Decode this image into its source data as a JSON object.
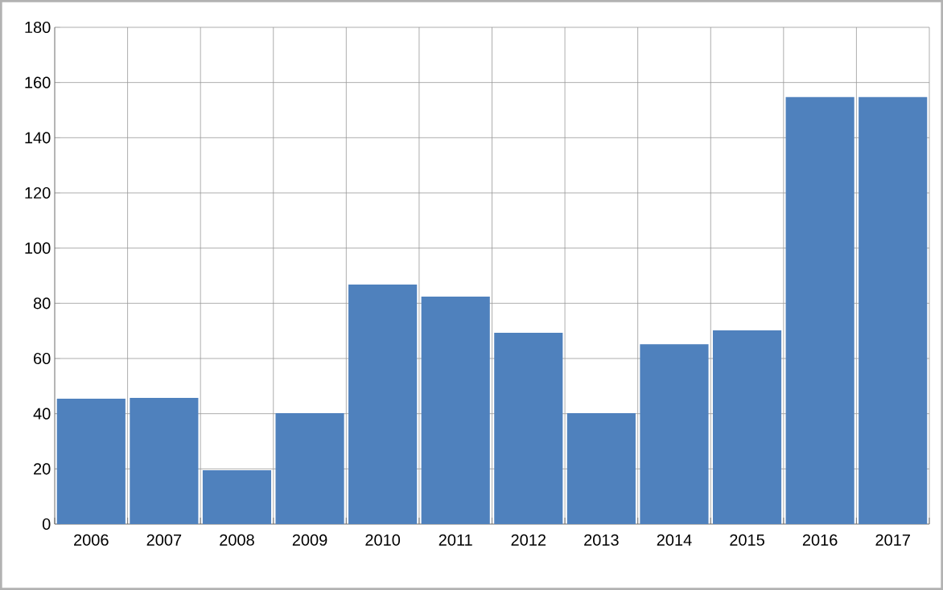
{
  "chart_data": {
    "type": "bar",
    "categories": [
      "2006",
      "2007",
      "2008",
      "2009",
      "2010",
      "2011",
      "2012",
      "2013",
      "2014",
      "2015",
      "2016",
      "2017"
    ],
    "values": [
      45.4,
      45.7,
      19.5,
      40.2,
      86.8,
      82.4,
      69.3,
      40.2,
      65.2,
      70.2,
      154.7,
      154.7
    ],
    "color": "#4f81bd",
    "ylim": [
      0,
      180
    ],
    "yticks": [
      0,
      20,
      40,
      60,
      80,
      100,
      120,
      140,
      160,
      180
    ],
    "grid": true
  }
}
